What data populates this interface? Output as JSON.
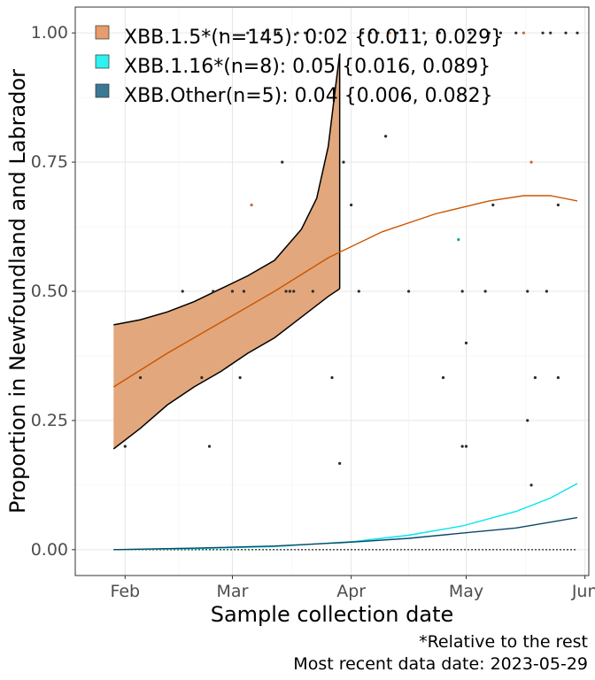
{
  "chart_data": {
    "type": "line",
    "xlabel": "Sample collection date",
    "ylabel": "Proportion in Newfoundland and Labrador",
    "xlim": [
      "2023-01-19",
      "2023-06-02"
    ],
    "ylim": [
      -0.05,
      1.05
    ],
    "grid": true,
    "legend_position": "top-left",
    "x_ticks": [
      {
        "date": "2023-02-01",
        "label": "Feb"
      },
      {
        "date": "2023-03-01",
        "label": "Mar"
      },
      {
        "date": "2023-04-01",
        "label": "Apr"
      },
      {
        "date": "2023-05-01",
        "label": "May"
      },
      {
        "date": "2023-06-01",
        "label": "Jun"
      }
    ],
    "y_ticks": [
      {
        "value": 0,
        "label": "0.00"
      },
      {
        "value": 0.25,
        "label": "0.25"
      },
      {
        "value": 0.5,
        "label": "0.50"
      },
      {
        "value": 0.75,
        "label": "0.75"
      },
      {
        "value": 1,
        "label": "1.00"
      }
    ],
    "legend": [
      {
        "label": "XBB.1.5*(n=145): 0.02 {0.011, 0.029}",
        "color": "#e69c6c"
      },
      {
        "label": "XBB.1.16*(n=8): 0.05 {0.016, 0.089}",
        "color": "#2ef2ef"
      },
      {
        "label": "XBB.Other(n=5): 0.04 {0.006, 0.082}",
        "color": "#3b7894"
      }
    ],
    "ribbon": {
      "name": "XBB.1.5*",
      "color": "#e2a77c",
      "upper": [
        [
          "2023-01-29",
          0.435
        ],
        [
          "2023-02-05",
          0.445
        ],
        [
          "2023-02-12",
          0.46
        ],
        [
          "2023-02-19",
          0.48
        ],
        [
          "2023-02-26",
          0.505
        ],
        [
          "2023-03-05",
          0.53
        ],
        [
          "2023-03-12",
          0.56
        ],
        [
          "2023-03-19",
          0.62
        ],
        [
          "2023-03-23",
          0.68
        ],
        [
          "2023-03-26",
          0.78
        ],
        [
          "2023-03-28",
          0.9
        ],
        [
          "2023-03-29",
          0.96
        ]
      ],
      "lower": [
        [
          "2023-01-29",
          0.195
        ],
        [
          "2023-02-05",
          0.235
        ],
        [
          "2023-02-12",
          0.28
        ],
        [
          "2023-02-19",
          0.315
        ],
        [
          "2023-02-26",
          0.345
        ],
        [
          "2023-03-05",
          0.38
        ],
        [
          "2023-03-12",
          0.41
        ],
        [
          "2023-03-19",
          0.45
        ],
        [
          "2023-03-26",
          0.49
        ],
        [
          "2023-03-29",
          0.505
        ]
      ]
    },
    "series": [
      {
        "name": "XBB.1.5*",
        "color": "#cc5500",
        "points": [
          [
            "2023-01-29",
            0.315
          ],
          [
            "2023-02-12",
            0.38
          ],
          [
            "2023-02-26",
            0.44
          ],
          [
            "2023-03-12",
            0.5
          ],
          [
            "2023-03-26",
            0.565
          ],
          [
            "2023-04-09",
            0.615
          ],
          [
            "2023-04-23",
            0.65
          ],
          [
            "2023-05-07",
            0.675
          ],
          [
            "2023-05-16",
            0.685
          ],
          [
            "2023-05-23",
            0.685
          ],
          [
            "2023-05-30",
            0.675
          ]
        ]
      },
      {
        "name": "XBB.1.16*",
        "color": "#00e5ee",
        "points": [
          [
            "2023-01-29",
            0.0
          ],
          [
            "2023-02-19",
            0.002
          ],
          [
            "2023-03-12",
            0.006
          ],
          [
            "2023-04-02",
            0.016
          ],
          [
            "2023-04-16",
            0.028
          ],
          [
            "2023-04-30",
            0.046
          ],
          [
            "2023-05-14",
            0.074
          ],
          [
            "2023-05-23",
            0.1
          ],
          [
            "2023-05-30",
            0.128
          ]
        ]
      },
      {
        "name": "XBB.Other",
        "color": "#0b4866",
        "points": [
          [
            "2023-01-29",
            0.0
          ],
          [
            "2023-02-19",
            0.003
          ],
          [
            "2023-03-12",
            0.007
          ],
          [
            "2023-04-02",
            0.015
          ],
          [
            "2023-04-16",
            0.022
          ],
          [
            "2023-04-30",
            0.032
          ],
          [
            "2023-05-14",
            0.042
          ],
          [
            "2023-05-30",
            0.062
          ]
        ]
      }
    ],
    "reference_line": {
      "y": 0,
      "style": "dotted"
    },
    "points": [
      {
        "x": "2023-02-05",
        "y": 0.333,
        "c": "#2b2b2b"
      },
      {
        "x": "2023-02-01",
        "y": 0.2,
        "c": "#2b2b2b"
      },
      {
        "x": "2023-02-16",
        "y": 0.5,
        "c": "#2b2b2b"
      },
      {
        "x": "2023-02-21",
        "y": 0.333,
        "c": "#2b2b2b"
      },
      {
        "x": "2023-02-23",
        "y": 0.2,
        "c": "#2b2b2b"
      },
      {
        "x": "2023-02-24",
        "y": 0.5,
        "c": "#2b2b2b"
      },
      {
        "x": "2023-02-26",
        "y": 1.0,
        "c": "#2b2b2b"
      },
      {
        "x": "2023-03-01",
        "y": 0.5,
        "c": "#2b2b2b"
      },
      {
        "x": "2023-03-03",
        "y": 0.333,
        "c": "#2b2b2b"
      },
      {
        "x": "2023-03-04",
        "y": 0.5,
        "c": "#2b2b2b"
      },
      {
        "x": "2023-03-05",
        "y": 1.0,
        "c": "#2b2b2b"
      },
      {
        "x": "2023-03-06",
        "y": 0.667,
        "c": "#c76a2e"
      },
      {
        "x": "2023-03-09",
        "y": 1.0,
        "c": "#2b2b2b"
      },
      {
        "x": "2023-03-13",
        "y": 1.0,
        "c": "#2b2b2b"
      },
      {
        "x": "2023-03-14",
        "y": 0.75,
        "c": "#2b2b2b"
      },
      {
        "x": "2023-03-15",
        "y": 0.5,
        "c": "#2b2b2b"
      },
      {
        "x": "2023-03-16",
        "y": 0.5,
        "c": "#2b2b2b"
      },
      {
        "x": "2023-03-17",
        "y": 0.5,
        "c": "#2b2b2b"
      },
      {
        "x": "2023-03-18",
        "y": 1.0,
        "c": "#2b2b2b"
      },
      {
        "x": "2023-03-20",
        "y": 1.0,
        "c": "#2b2b2b"
      },
      {
        "x": "2023-03-22",
        "y": 0.5,
        "c": "#2b2b2b"
      },
      {
        "x": "2023-03-24",
        "y": 1.0,
        "c": "#2b2b2b"
      },
      {
        "x": "2023-03-27",
        "y": 0.333,
        "c": "#2b2b2b"
      },
      {
        "x": "2023-03-29",
        "y": 0.167,
        "c": "#2b2b2b"
      },
      {
        "x": "2023-03-30",
        "y": 0.75,
        "c": "#2b2b2b"
      },
      {
        "x": "2023-04-01",
        "y": 0.667,
        "c": "#2b2b2b"
      },
      {
        "x": "2023-04-03",
        "y": 0.5,
        "c": "#2b2b2b"
      },
      {
        "x": "2023-04-04",
        "y": 1.0,
        "c": "#2b2b2b"
      },
      {
        "x": "2023-04-06",
        "y": 1.0,
        "c": "#2b2b2b"
      },
      {
        "x": "2023-04-08",
        "y": 1.0,
        "c": "#2b2b2b"
      },
      {
        "x": "2023-04-10",
        "y": 0.8,
        "c": "#2b2b2b"
      },
      {
        "x": "2023-04-11",
        "y": 1.0,
        "c": "#c76a2e"
      },
      {
        "x": "2023-04-13",
        "y": 1.0,
        "c": "#2b2b2b"
      },
      {
        "x": "2023-04-15",
        "y": 1.0,
        "c": "#2b2b2b"
      },
      {
        "x": "2023-04-16",
        "y": 0.5,
        "c": "#2b2b2b"
      },
      {
        "x": "2023-04-18",
        "y": 1.0,
        "c": "#2b2b2b"
      },
      {
        "x": "2023-04-20",
        "y": 1.0,
        "c": "#2b2b2b"
      },
      {
        "x": "2023-04-24",
        "y": 1.0,
        "c": "#2b2b2b"
      },
      {
        "x": "2023-04-25",
        "y": 0.333,
        "c": "#2b2b2b"
      },
      {
        "x": "2023-04-29",
        "y": 0.6,
        "c": "#1a9e9e"
      },
      {
        "x": "2023-04-30",
        "y": 0.5,
        "c": "#2b2b2b"
      },
      {
        "x": "2023-04-30",
        "y": 0.2,
        "c": "#2b2b2b"
      },
      {
        "x": "2023-05-01",
        "y": 0.4,
        "c": "#2b2b2b"
      },
      {
        "x": "2023-05-01",
        "y": 0.2,
        "c": "#2b2b2b"
      },
      {
        "x": "2023-05-02",
        "y": 1.0,
        "c": "#2b2b2b"
      },
      {
        "x": "2023-05-06",
        "y": 0.5,
        "c": "#2b2b2b"
      },
      {
        "x": "2023-05-07",
        "y": 1.0,
        "c": "#2b2b2b"
      },
      {
        "x": "2023-05-08",
        "y": 0.667,
        "c": "#2b2b2b"
      },
      {
        "x": "2023-05-10",
        "y": 1.0,
        "c": "#2b2b2b"
      },
      {
        "x": "2023-05-14",
        "y": 1.0,
        "c": "#2b2b2b"
      },
      {
        "x": "2023-05-16",
        "y": 1.0,
        "c": "#c76a2e"
      },
      {
        "x": "2023-05-17",
        "y": 0.5,
        "c": "#2b2b2b"
      },
      {
        "x": "2023-05-17",
        "y": 0.25,
        "c": "#2b2b2b"
      },
      {
        "x": "2023-05-18",
        "y": 0.125,
        "c": "#2b2b2b"
      },
      {
        "x": "2023-05-18",
        "y": 0.75,
        "c": "#c76a2e"
      },
      {
        "x": "2023-05-19",
        "y": 0.333,
        "c": "#2b2b2b"
      },
      {
        "x": "2023-05-21",
        "y": 1.0,
        "c": "#2b2b2b"
      },
      {
        "x": "2023-05-22",
        "y": 0.5,
        "c": "#2b2b2b"
      },
      {
        "x": "2023-05-23",
        "y": 1.0,
        "c": "#2b2b2b"
      },
      {
        "x": "2023-05-25",
        "y": 0.667,
        "c": "#2b2b2b"
      },
      {
        "x": "2023-05-25",
        "y": 0.333,
        "c": "#2b2b2b"
      },
      {
        "x": "2023-05-27",
        "y": 1.0,
        "c": "#2b2b2b"
      },
      {
        "x": "2023-05-30",
        "y": 1.0,
        "c": "#2b2b2b"
      }
    ],
    "captions": [
      "*Relative to the rest",
      "Most recent data date: 2023-05-29"
    ]
  }
}
